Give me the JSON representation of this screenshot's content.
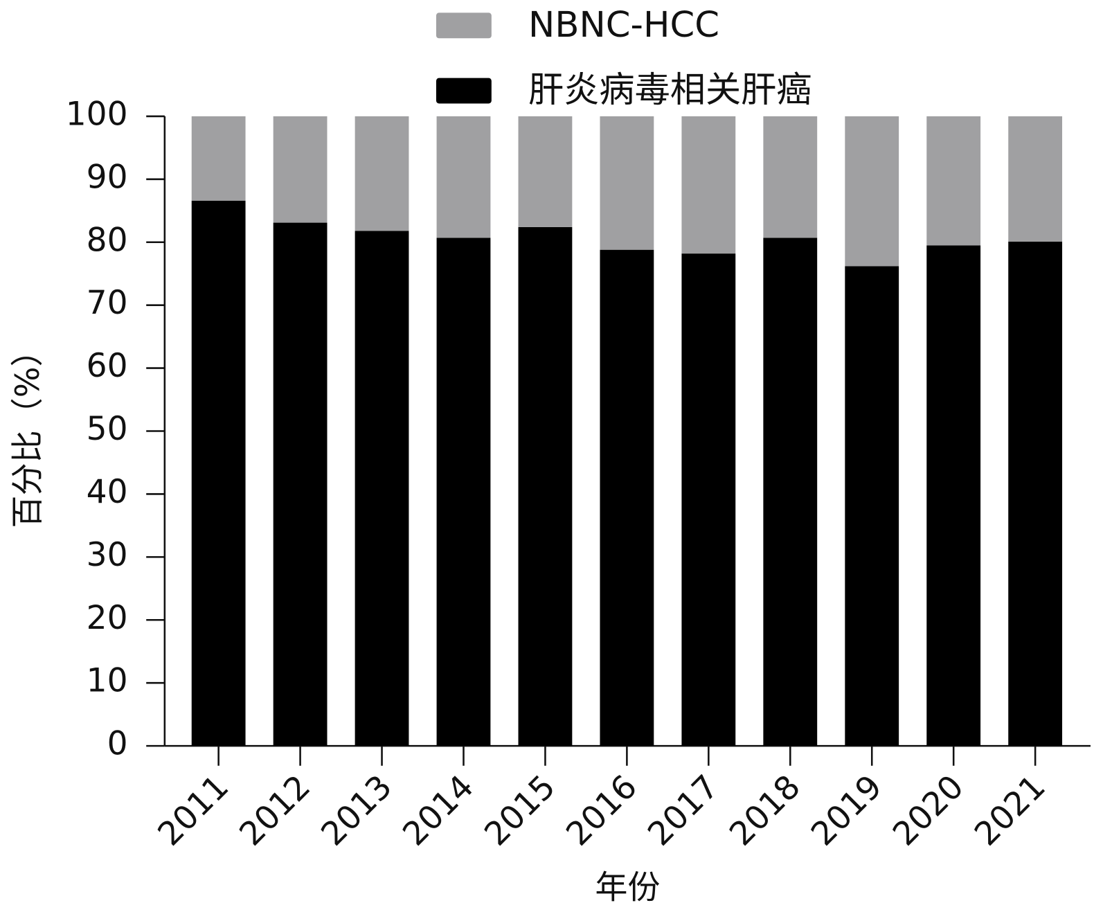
{
  "chart_data": {
    "type": "stacked_bar",
    "x_label": "年份",
    "y_label": "百分比（%）",
    "categories": [
      "2011",
      "2012",
      "2013",
      "2014",
      "2015",
      "2016",
      "2017",
      "2018",
      "2019",
      "2020",
      "2021"
    ],
    "series": [
      {
        "name": "肝炎病毒相关肝癌",
        "color": "#000000",
        "values": [
          86.6,
          83.1,
          81.8,
          80.7,
          82.4,
          78.8,
          78.2,
          80.7,
          76.2,
          79.5,
          80.1
        ]
      },
      {
        "name": "NBNC-HCC",
        "color": "#a0a0a2",
        "values": [
          13.4,
          16.9,
          18.2,
          19.3,
          17.6,
          21.2,
          21.8,
          19.3,
          23.8,
          20.5,
          19.9
        ]
      }
    ],
    "ylim": [
      0,
      100
    ],
    "yticks": [
      0,
      10,
      20,
      30,
      40,
      50,
      60,
      70,
      80,
      90,
      100
    ],
    "grid": false,
    "legend_position": "top"
  }
}
